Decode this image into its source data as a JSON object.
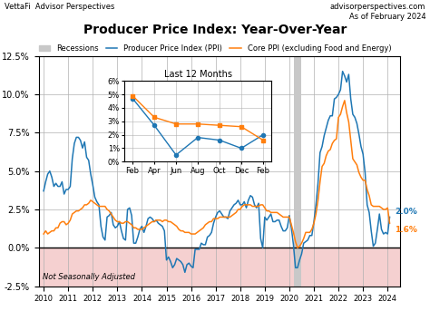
{
  "chart_data": [
    {
      "type": "line",
      "title": "Producer Price Index: Year-Over-Year",
      "header_left": "VettaFi  Advisor Perspectives",
      "header_right": "advisorperspectives.com\nAs of February 2024",
      "annotations": [
        "Not Seasonally Adjusted"
      ],
      "x": [
        2010.0,
        2010.08333,
        2010.16667,
        2010.25,
        2010.33333,
        2010.41667,
        2010.5,
        2010.58333,
        2010.66667,
        2010.75,
        2010.83333,
        2010.91667,
        2011.0,
        2011.08333,
        2011.16667,
        2011.25,
        2011.33333,
        2011.41667,
        2011.5,
        2011.58333,
        2011.66667,
        2011.75,
        2011.83333,
        2011.91667,
        2012.0,
        2012.08333,
        2012.16667,
        2012.25,
        2012.33333,
        2012.41667,
        2012.5,
        2012.58333,
        2012.66667,
        2012.75,
        2012.83333,
        2012.91667,
        2013.0,
        2013.08333,
        2013.16667,
        2013.25,
        2013.33333,
        2013.41667,
        2013.5,
        2013.58333,
        2013.66667,
        2013.75,
        2013.83333,
        2013.91667,
        2014.0,
        2014.08333,
        2014.16667,
        2014.25,
        2014.33333,
        2014.41667,
        2014.5,
        2014.58333,
        2014.66667,
        2014.75,
        2014.83333,
        2014.91667,
        2015.0,
        2015.08333,
        2015.16667,
        2015.25,
        2015.33333,
        2015.41667,
        2015.5,
        2015.58333,
        2015.66667,
        2015.75,
        2015.83333,
        2015.91667,
        2016.0,
        2016.08333,
        2016.16667,
        2016.25,
        2016.33333,
        2016.41667,
        2016.5,
        2016.58333,
        2016.66667,
        2016.75,
        2016.83333,
        2016.91667,
        2017.0,
        2017.08333,
        2017.16667,
        2017.25,
        2017.33333,
        2017.41667,
        2017.5,
        2017.58333,
        2017.66667,
        2017.75,
        2017.83333,
        2017.91667,
        2018.0,
        2018.08333,
        2018.16667,
        2018.25,
        2018.33333,
        2018.41667,
        2018.5,
        2018.58333,
        2018.66667,
        2018.75,
        2018.83333,
        2018.91667,
        2019.0,
        2019.08333,
        2019.16667,
        2019.25,
        2019.33333,
        2019.41667,
        2019.5,
        2019.58333,
        2019.66667,
        2019.75,
        2019.83333,
        2019.91667,
        2020.0,
        2020.08333,
        2020.16667,
        2020.25,
        2020.33333,
        2020.41667,
        2020.5,
        2020.58333,
        2020.66667,
        2020.75,
        2020.83333,
        2020.91667,
        2021.0,
        2021.08333,
        2021.16667,
        2021.25,
        2021.33333,
        2021.41667,
        2021.5,
        2021.58333,
        2021.66667,
        2021.75,
        2021.83333,
        2021.91667,
        2022.0,
        2022.08333,
        2022.16667,
        2022.25,
        2022.33333,
        2022.41667,
        2022.5,
        2022.58333,
        2022.66667,
        2022.75,
        2022.83333,
        2022.91667,
        2023.0,
        2023.08333,
        2023.16667,
        2023.25,
        2023.33333,
        2023.41667,
        2023.5,
        2023.58333,
        2023.66667,
        2023.75,
        2023.83333,
        2023.91667,
        2024.0,
        2024.08333
      ],
      "series": [
        {
          "name": "Producer Price Index (PPI)",
          "end_label": "2.0%",
          "values": [
            3.7,
            4.3,
            4.8,
            5.0,
            4.6,
            4.0,
            4.2,
            4.0,
            4.0,
            4.3,
            3.5,
            3.8,
            3.8,
            4.0,
            5.8,
            6.8,
            7.2,
            7.2,
            7.0,
            6.5,
            6.9,
            5.9,
            5.7,
            4.8,
            4.1,
            3.3,
            3.0,
            2.8,
            1.4,
            0.7,
            0.5,
            2.0,
            2.1,
            2.3,
            1.5,
            1.3,
            1.4,
            1.7,
            1.1,
            0.6,
            0.5,
            2.5,
            2.6,
            2.1,
            0.3,
            0.3,
            0.7,
            1.2,
            1.4,
            1.0,
            1.4,
            1.9,
            2.0,
            1.9,
            1.7,
            1.8,
            1.6,
            1.5,
            1.4,
            1.1,
            -0.8,
            -0.6,
            -0.9,
            -1.3,
            -1.1,
            -0.7,
            -0.8,
            -0.9,
            -1.1,
            -1.6,
            -1.1,
            -1.0,
            -1.2,
            -1.3,
            -0.1,
            -0.1,
            -0.1,
            0.3,
            0.2,
            0.2,
            0.7,
            0.8,
            1.0,
            1.6,
            2.0,
            2.3,
            2.4,
            2.2,
            2.0,
            2.0,
            1.9,
            2.4,
            2.6,
            2.8,
            2.9,
            3.1,
            2.8,
            2.8,
            3.0,
            2.6,
            3.1,
            3.4,
            3.3,
            2.8,
            2.6,
            2.9,
            0.6,
            0.0,
            2.0,
            1.8,
            2.0,
            2.2,
            1.7,
            1.7,
            1.8,
            1.8,
            1.4,
            1.1,
            1.1,
            1.3,
            2.1,
            1.3,
            0.2,
            -1.3,
            -1.3,
            -0.8,
            -0.4,
            0.3,
            0.4,
            0.5,
            0.8,
            0.8,
            1.7,
            2.8,
            4.2,
            6.2,
            6.6,
            7.3,
            7.8,
            8.3,
            8.6,
            8.6,
            9.7,
            9.8,
            10.0,
            10.3,
            11.5,
            11.2,
            10.8,
            11.3,
            9.7,
            8.7,
            8.5,
            8.1,
            7.4,
            6.6,
            6.1,
            4.9,
            2.8,
            2.3,
            1.1,
            0.1,
            0.3,
            1.2,
            2.2,
            1.2,
            0.9,
            1.0,
            0.9,
            2.0
          ]
        },
        {
          "name": "Core PPI (excluding Food and Energy)",
          "end_label": "1.6%",
          "values": [
            0.9,
            1.1,
            0.9,
            1.0,
            1.1,
            1.1,
            1.3,
            1.3,
            1.6,
            1.7,
            1.7,
            1.5,
            1.6,
            1.8,
            2.2,
            2.3,
            2.4,
            2.4,
            2.5,
            2.6,
            2.8,
            2.8,
            2.9,
            3.1,
            3.0,
            2.9,
            2.8,
            2.7,
            2.7,
            2.7,
            2.7,
            2.5,
            2.4,
            2.2,
            2.0,
            1.8,
            1.7,
            1.7,
            1.6,
            1.6,
            1.7,
            1.7,
            1.6,
            1.5,
            1.3,
            1.3,
            1.2,
            1.2,
            1.2,
            1.3,
            1.4,
            1.5,
            1.6,
            1.7,
            1.7,
            1.8,
            1.8,
            1.8,
            1.7,
            1.8,
            1.8,
            1.7,
            1.7,
            1.6,
            1.5,
            1.4,
            1.2,
            1.1,
            1.1,
            1.0,
            1.0,
            1.0,
            0.9,
            0.9,
            0.9,
            1.0,
            1.1,
            1.2,
            1.3,
            1.5,
            1.6,
            1.7,
            1.7,
            1.9,
            1.9,
            1.9,
            2.0,
            2.0,
            2.0,
            2.0,
            2.0,
            2.0,
            2.1,
            2.2,
            2.3,
            2.5,
            2.5,
            2.7,
            2.8,
            2.8,
            2.8,
            2.8,
            2.7,
            2.7,
            2.7,
            2.7,
            2.8,
            2.8,
            2.6,
            2.4,
            2.4,
            2.3,
            2.3,
            2.3,
            2.3,
            2.2,
            2.1,
            2.0,
            2.0,
            2.0,
            2.0,
            1.5,
            1.0,
            0.4,
            0.0,
            0.1,
            0.3,
            0.6,
            1.0,
            1.0,
            1.0,
            1.2,
            1.6,
            2.2,
            3.1,
            4.3,
            5.3,
            5.5,
            6.0,
            6.3,
            6.4,
            6.8,
            7.0,
            7.1,
            8.5,
            8.7,
            9.2,
            9.6,
            8.8,
            8.2,
            7.0,
            5.8,
            5.6,
            5.4,
            4.9,
            4.6,
            4.4,
            4.4,
            3.8,
            3.4,
            2.8,
            2.7,
            2.7,
            2.7,
            2.7,
            2.6,
            2.5,
            2.5,
            2.6,
            1.6
          ]
        }
      ],
      "recessions": {
        "name": "Recessions",
        "color": "#c8c8c8",
        "periods": [
          [
            2020.17,
            2020.5
          ]
        ]
      },
      "reference_line": {
        "y": 0.0,
        "color": "#000000"
      },
      "below_zero_color": "#f5d0d0",
      "xlim": [
        2009.8,
        2024.5
      ],
      "xticks": [
        2010,
        2011,
        2012,
        2013,
        2014,
        2015,
        2016,
        2017,
        2018,
        2019,
        2020,
        2021,
        2022,
        2023,
        2024
      ],
      "ylim": [
        -2.5,
        12.5
      ],
      "yticks": [
        {
          "value": -2.5,
          "label": "-2.5%"
        },
        {
          "value": 0.0,
          "label": "0.0%"
        },
        {
          "value": 2.5,
          "label": "2.5%"
        },
        {
          "value": 5.0,
          "label": "5.0%"
        },
        {
          "value": 7.5,
          "label": "7.5%"
        },
        {
          "value": 10.0,
          "label": "10.0%"
        },
        {
          "value": 12.5,
          "label": "12.5%"
        }
      ],
      "grid": true,
      "legend": "upper center"
    },
    {
      "type": "line",
      "title": "Last 12 Months",
      "categories": [
        "Feb",
        "Apr",
        "Jun",
        "Aug",
        "Oct",
        "Dec",
        "Feb"
      ],
      "series": [
        {
          "marker": "o",
          "values": [
            4.7,
            2.7,
            0.5,
            1.8,
            1.6,
            1.0,
            2.0
          ]
        },
        {
          "marker": "s",
          "values": [
            4.9,
            3.3,
            2.8,
            2.8,
            2.7,
            2.6,
            1.6
          ]
        }
      ],
      "ylim": [
        0.0,
        6.0
      ],
      "yticks": [
        {
          "value": 0.0,
          "label": "0%"
        },
        {
          "value": 1.0,
          "label": "1%"
        },
        {
          "value": 2.0,
          "label": "2%"
        },
        {
          "value": 3.0,
          "label": "3%"
        },
        {
          "value": 4.0,
          "label": "4%"
        },
        {
          "value": 5.0,
          "label": "5%"
        },
        {
          "value": 6.0,
          "label": "6%"
        }
      ],
      "grid": true
    }
  ]
}
